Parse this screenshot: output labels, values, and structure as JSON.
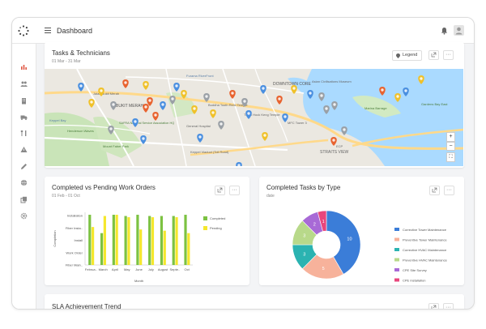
{
  "header": {
    "title": "Dashboard",
    "menu_icon": "hamburger-icon",
    "notify_icon": "bell-icon",
    "user_icon": "avatar-icon"
  },
  "sidebar": {
    "items": [
      {
        "icon": "chart-icon",
        "active": true
      },
      {
        "icon": "users-icon"
      },
      {
        "icon": "building-icon"
      },
      {
        "icon": "truck-icon"
      },
      {
        "icon": "tools-icon"
      },
      {
        "icon": "warning-icon"
      },
      {
        "icon": "pen-icon"
      },
      {
        "icon": "globe-icon"
      },
      {
        "icon": "copy-icon"
      },
      {
        "icon": "settings-icon"
      }
    ]
  },
  "tasks_card": {
    "title": "Tasks & Technicians",
    "date_range": "01 Mar - 31 Mar",
    "legend_label": "Legend",
    "map_labels": [
      "DOWNTOWN CORE",
      "Furama RiverFront",
      "Jalan Bukit Merah",
      "BUKIT MERAH",
      "SAFRA National Service Association HQ",
      "Henderson Waves",
      "Mount Faber Park",
      "Buddha Tooth Relic Temple",
      "Thian Hock Keng Temple",
      "General Hospital",
      "Keppel Viaduct (Toll Road)",
      "Marina Barrage",
      "Gardens Bay East",
      "Asian Civilisations Museum",
      "Keppel Bay",
      "ECP",
      "STRAITS VIEW",
      "MFC Tower 3"
    ],
    "zoom_in": "+",
    "zoom_out": "−"
  },
  "work_orders_card": {
    "title": "Completed vs Pending Work Orders",
    "date_range": "01 Feb - 01 Oct"
  },
  "completed_tasks_card": {
    "title": "Completed Tasks by Type",
    "subtitle": "date"
  },
  "sla_card": {
    "title": "SLA Achievement Trend"
  },
  "colors": {
    "completed": "#7cc242",
    "pending": "#f5e72c",
    "accent": "#e05a47"
  },
  "chart_data": [
    {
      "type": "bar",
      "categories": [
        "Februa..",
        "March",
        "April",
        "May",
        "June",
        "July",
        "August",
        "Septe..",
        "Oct"
      ],
      "y_categories": [
        "Installation",
        "Fiber Insta..",
        "Install",
        "Work Order",
        "Fiber Main.."
      ],
      "ylabel": "Completion",
      "xlabel": "Month",
      "series": [
        {
          "name": "Completed",
          "color": "#7cc242",
          "values": [
            4.1,
            2.6,
            4.1,
            4.0,
            4.1,
            4.0,
            4.0,
            4.0,
            4.1
          ]
        },
        {
          "name": "Pending",
          "color": "#f5e72c",
          "values": [
            3.1,
            4.0,
            4.1,
            3.9,
            2.9,
            3.9,
            2.8,
            3.9,
            2.6
          ]
        }
      ],
      "ylim": [
        0,
        4.3
      ]
    },
    {
      "type": "pie",
      "slices": [
        {
          "name": "Corrective Tower Maintenance",
          "value": 10,
          "color": "#3b7dd8"
        },
        {
          "name": "Preventive Tower Maintenance",
          "value": 5,
          "color": "#f7b29b"
        },
        {
          "name": "Corrective HVAC Maintenance",
          "value": 3,
          "color": "#2bb3b1"
        },
        {
          "name": "Preventive HVAC Maintenance",
          "value": 3,
          "color": "#b8d98a"
        },
        {
          "name": "CPE Site Survey",
          "value": 2,
          "color": "#a86ad6"
        },
        {
          "name": "CPE Installation",
          "value": 1,
          "color": "#e8467c"
        }
      ],
      "labels_shown": [
        "10",
        "5",
        "3",
        "3",
        "2",
        "1"
      ]
    }
  ]
}
